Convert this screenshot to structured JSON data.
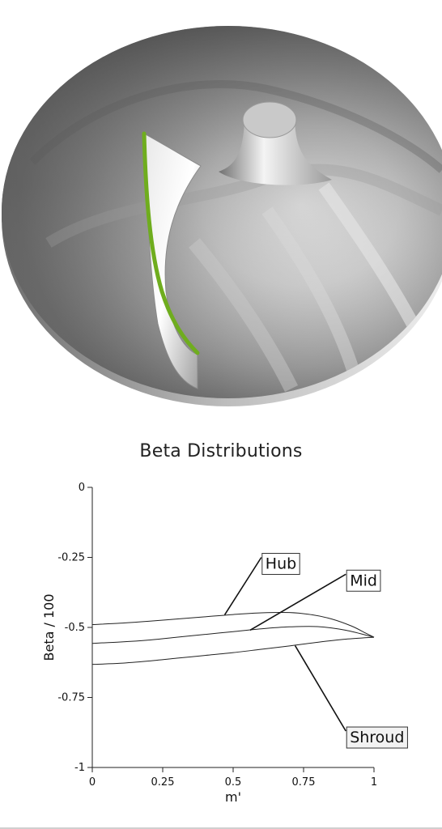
{
  "chart_data": {
    "type": "line",
    "title": "Beta Distributions",
    "xlabel": "m'",
    "ylabel": "Beta / 100",
    "xlim": [
      0,
      1
    ],
    "ylim": [
      -1,
      0
    ],
    "x_ticks": [
      {
        "value": 0,
        "label": "0"
      },
      {
        "value": 0.25,
        "label": "0.25"
      },
      {
        "value": 0.5,
        "label": "0.5"
      },
      {
        "value": 0.75,
        "label": "0.75"
      },
      {
        "value": 1,
        "label": "1"
      }
    ],
    "y_ticks": [
      {
        "value": 0,
        "label": "0"
      },
      {
        "value": -0.25,
        "label": "-0.25"
      },
      {
        "value": -0.5,
        "label": "-0.5"
      },
      {
        "value": -0.75,
        "label": "-0.75"
      },
      {
        "value": -1,
        "label": "-1"
      }
    ],
    "grid": false,
    "series": [
      {
        "name": "Hub",
        "x": [
          0,
          0.1,
          0.2,
          0.3,
          0.4,
          0.5,
          0.6,
          0.7,
          0.78,
          0.85,
          0.92,
          0.97,
          1.0
        ],
        "y": [
          -0.49,
          -0.485,
          -0.478,
          -0.47,
          -0.462,
          -0.454,
          -0.448,
          -0.447,
          -0.455,
          -0.47,
          -0.495,
          -0.52,
          -0.535
        ],
        "callout": {
          "label": "Hub",
          "x": 0.47,
          "y": -0.455,
          "label_x": 0.6,
          "label_y": -0.25
        }
      },
      {
        "name": "Mid",
        "x": [
          0,
          0.1,
          0.2,
          0.3,
          0.4,
          0.5,
          0.6,
          0.7,
          0.8,
          0.9,
          1.0
        ],
        "y": [
          -0.557,
          -0.552,
          -0.545,
          -0.535,
          -0.525,
          -0.515,
          -0.505,
          -0.498,
          -0.497,
          -0.51,
          -0.535
        ],
        "callout": {
          "label": "Mid",
          "x": 0.56,
          "y": -0.51,
          "label_x": 0.9,
          "label_y": -0.31
        }
      },
      {
        "name": "Shroud",
        "x": [
          0,
          0.1,
          0.2,
          0.3,
          0.4,
          0.5,
          0.6,
          0.7,
          0.8,
          0.9,
          1.0
        ],
        "y": [
          -0.632,
          -0.628,
          -0.62,
          -0.61,
          -0.6,
          -0.59,
          -0.578,
          -0.566,
          -0.553,
          -0.542,
          -0.535
        ],
        "callout": {
          "label": "Shroud",
          "x": 0.72,
          "y": -0.565,
          "label_x": 0.9,
          "label_y": -0.87
        }
      }
    ]
  },
  "render_view": {
    "blade_edge_color": "#6fad1e",
    "surface_colors": [
      "#3a3a3a",
      "#6a6a6a",
      "#a7a7a7",
      "#dedede"
    ]
  }
}
